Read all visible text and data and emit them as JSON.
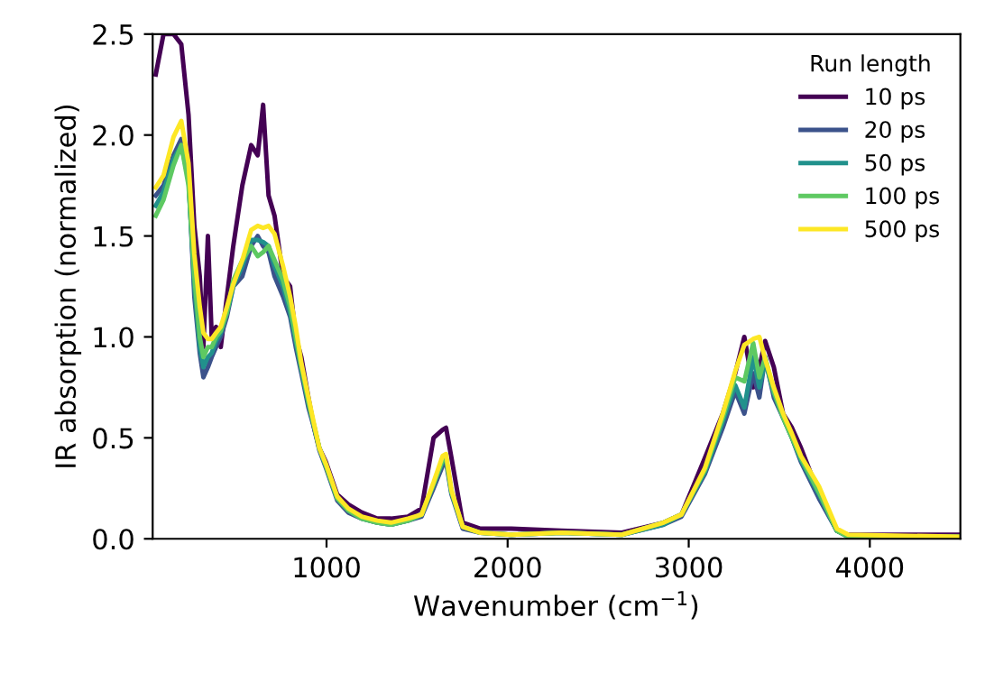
{
  "chart_data": {
    "type": "line",
    "xlabel": "Wavenumber (cm$^{−1}$)",
    "ylabel": "IR absorption (normalized)",
    "legend_title": "Run length",
    "x": [
      57,
      100,
      155,
      198,
      238,
      270,
      300,
      320,
      345,
      366,
      390,
      416,
      450,
      485,
      535,
      584,
      620,
      650,
      680,
      713,
      760,
      799,
      830,
      861,
      900,
      931,
      960,
      997,
      1059,
      1120,
      1195,
      1280,
      1356,
      1450,
      1525,
      1591,
      1641,
      1660,
      1690,
      1752,
      1850,
      2020,
      2297,
      2631,
      2861,
      2960,
      3089,
      3188,
      3257,
      3307,
      3356,
      3390,
      3422,
      3470,
      3521,
      3570,
      3620,
      3719,
      3818,
      3881,
      4500
    ],
    "series": [
      {
        "name": "10 ps",
        "color": "#440154",
        "values": [
          2.3,
          2.5,
          2.5,
          2.45,
          2.1,
          1.55,
          1.3,
          0.95,
          1.5,
          1.0,
          1.05,
          0.95,
          1.2,
          1.45,
          1.75,
          1.95,
          1.9,
          2.15,
          1.7,
          1.6,
          1.3,
          1.25,
          1.0,
          0.9,
          0.7,
          0.55,
          0.45,
          0.38,
          0.22,
          0.17,
          0.13,
          0.1,
          0.1,
          0.11,
          0.15,
          0.5,
          0.54,
          0.55,
          0.4,
          0.08,
          0.05,
          0.05,
          0.04,
          0.03,
          0.08,
          0.12,
          0.4,
          0.62,
          0.82,
          1.0,
          0.75,
          0.85,
          0.98,
          0.85,
          0.62,
          0.55,
          0.45,
          0.22,
          0.04,
          0.02,
          0.02
        ]
      },
      {
        "name": "20 ps",
        "color": "#3b528b",
        "values": [
          1.7,
          1.75,
          1.9,
          1.98,
          1.8,
          1.2,
          0.92,
          0.8,
          0.85,
          0.9,
          0.95,
          1.0,
          1.1,
          1.25,
          1.3,
          1.45,
          1.5,
          1.45,
          1.42,
          1.3,
          1.2,
          1.1,
          0.95,
          0.82,
          0.65,
          0.55,
          0.44,
          0.35,
          0.19,
          0.13,
          0.1,
          0.08,
          0.07,
          0.09,
          0.11,
          0.25,
          0.36,
          0.38,
          0.22,
          0.05,
          0.03,
          0.02,
          0.03,
          0.02,
          0.07,
          0.11,
          0.32,
          0.55,
          0.73,
          0.62,
          0.82,
          0.7,
          0.9,
          0.7,
          0.6,
          0.5,
          0.38,
          0.2,
          0.04,
          0.01,
          0.01
        ]
      },
      {
        "name": "50 ps",
        "color": "#21918c",
        "values": [
          1.65,
          1.72,
          1.88,
          1.95,
          1.78,
          1.25,
          0.95,
          0.85,
          0.9,
          0.92,
          0.98,
          1.02,
          1.12,
          1.25,
          1.35,
          1.48,
          1.48,
          1.47,
          1.45,
          1.35,
          1.25,
          1.12,
          0.98,
          0.84,
          0.67,
          0.56,
          0.45,
          0.36,
          0.2,
          0.14,
          0.1,
          0.08,
          0.07,
          0.09,
          0.12,
          0.27,
          0.38,
          0.4,
          0.23,
          0.06,
          0.03,
          0.02,
          0.03,
          0.02,
          0.07,
          0.12,
          0.33,
          0.58,
          0.76,
          0.65,
          0.9,
          0.75,
          0.88,
          0.72,
          0.6,
          0.5,
          0.39,
          0.22,
          0.04,
          0.01,
          0.01
        ]
      },
      {
        "name": "100 ps",
        "color": "#5ec962",
        "values": [
          1.6,
          1.68,
          1.85,
          1.95,
          1.75,
          1.3,
          1.0,
          0.9,
          0.95,
          0.95,
          1.0,
          1.03,
          1.12,
          1.28,
          1.38,
          1.45,
          1.4,
          1.42,
          1.45,
          1.38,
          1.28,
          1.15,
          1.0,
          0.85,
          0.68,
          0.56,
          0.45,
          0.36,
          0.2,
          0.14,
          0.1,
          0.08,
          0.07,
          0.09,
          0.12,
          0.27,
          0.39,
          0.4,
          0.23,
          0.06,
          0.03,
          0.02,
          0.03,
          0.02,
          0.08,
          0.12,
          0.34,
          0.6,
          0.8,
          0.78,
          0.97,
          0.8,
          0.9,
          0.73,
          0.6,
          0.5,
          0.4,
          0.23,
          0.04,
          0.01,
          0.01
        ]
      },
      {
        "name": "500 ps",
        "color": "#fde725",
        "values": [
          1.74,
          1.8,
          1.99,
          2.07,
          1.86,
          1.41,
          1.15,
          1.02,
          0.99,
          0.99,
          1.02,
          1.05,
          1.15,
          1.26,
          1.38,
          1.53,
          1.55,
          1.54,
          1.55,
          1.51,
          1.35,
          1.2,
          1.05,
          0.87,
          0.7,
          0.57,
          0.45,
          0.37,
          0.21,
          0.15,
          0.11,
          0.09,
          0.08,
          0.1,
          0.12,
          0.28,
          0.41,
          0.42,
          0.24,
          0.06,
          0.03,
          0.02,
          0.03,
          0.02,
          0.08,
          0.12,
          0.35,
          0.62,
          0.83,
          0.96,
          0.99,
          1.0,
          0.89,
          0.75,
          0.62,
          0.52,
          0.41,
          0.26,
          0.05,
          0.02,
          0.01
        ]
      }
    ],
    "xlim": [
      40,
      4500
    ],
    "xticks": [
      1000,
      2000,
      3000,
      4000
    ],
    "ylim": [
      0,
      2.5
    ],
    "yticks": [
      {
        "value": 0,
        "label": "0.0"
      },
      0.5,
      {
        "value": 1,
        "label": "1.0"
      },
      1.5,
      {
        "value": 2,
        "label": "2.0"
      },
      2.5
    ],
    "legend": "top right",
    "grid": false
  }
}
